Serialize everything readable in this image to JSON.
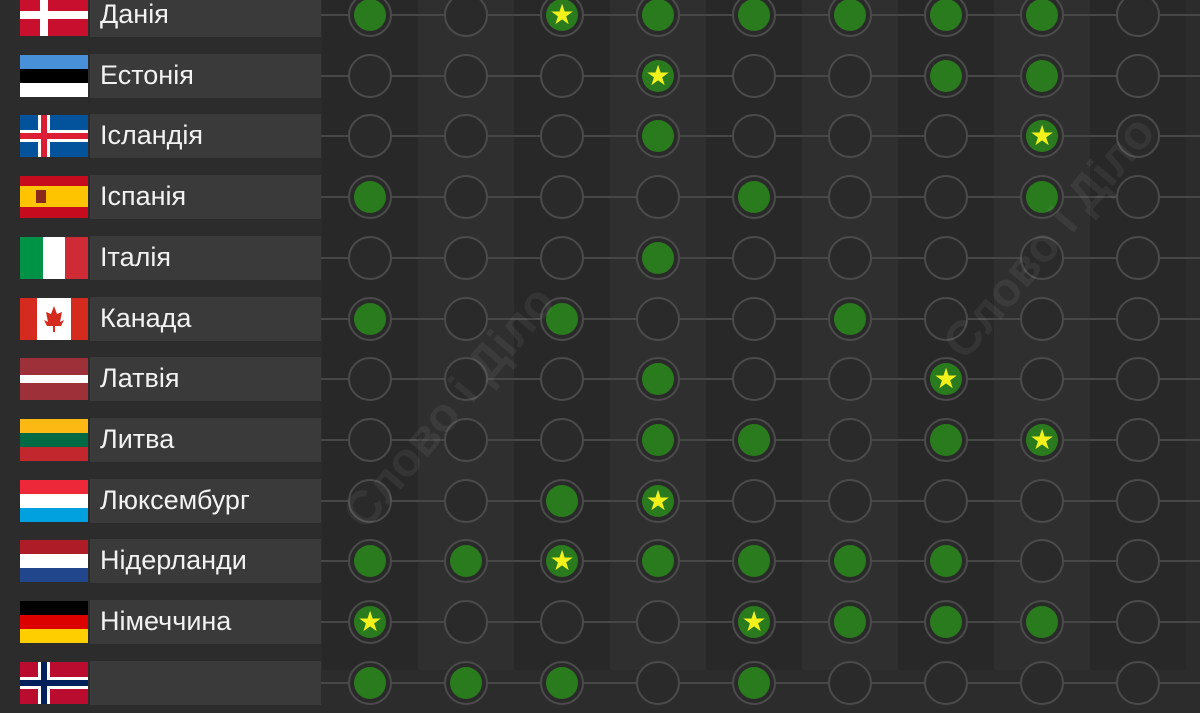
{
  "colors": {
    "filled": "#2a7a1e",
    "star": "#f3f11c",
    "empty_border": "#4b4b4b",
    "label_bg": "#3a3a3a"
  },
  "watermark": "Слово і Діло",
  "legend_states": {
    "0": "empty",
    "1": "filled",
    "2": "star"
  },
  "rows": [
    {
      "name": "Данія",
      "flag": "denmark",
      "cells": [
        1,
        0,
        2,
        1,
        1,
        1,
        1,
        1,
        0
      ]
    },
    {
      "name": "Естонія",
      "flag": "estonia",
      "cells": [
        0,
        0,
        0,
        2,
        0,
        0,
        1,
        1,
        0
      ]
    },
    {
      "name": "Ісландія",
      "flag": "iceland",
      "cells": [
        0,
        0,
        0,
        1,
        0,
        0,
        0,
        2,
        0
      ]
    },
    {
      "name": "Іспанія",
      "flag": "spain",
      "cells": [
        1,
        0,
        0,
        0,
        1,
        0,
        0,
        1,
        0
      ]
    },
    {
      "name": "Італія",
      "flag": "italy",
      "cells": [
        0,
        0,
        0,
        1,
        0,
        0,
        0,
        0,
        0
      ]
    },
    {
      "name": "Канада",
      "flag": "canada",
      "cells": [
        1,
        0,
        1,
        0,
        0,
        1,
        0,
        0,
        0
      ]
    },
    {
      "name": "Латвія",
      "flag": "latvia",
      "cells": [
        0,
        0,
        0,
        1,
        0,
        0,
        2,
        0,
        0
      ]
    },
    {
      "name": "Литва",
      "flag": "lithuania",
      "cells": [
        0,
        0,
        0,
        1,
        1,
        0,
        1,
        2,
        0
      ]
    },
    {
      "name": "Люксембург",
      "flag": "luxembourg",
      "cells": [
        0,
        0,
        1,
        2,
        0,
        0,
        0,
        0,
        0
      ]
    },
    {
      "name": "Нідерланди",
      "flag": "netherlands",
      "cells": [
        1,
        1,
        2,
        1,
        1,
        1,
        1,
        0,
        0
      ]
    },
    {
      "name": "Німеччина",
      "flag": "germany",
      "cells": [
        2,
        0,
        0,
        0,
        2,
        1,
        1,
        1,
        0
      ]
    },
    {
      "name": "",
      "flag": "norway",
      "cells": [
        1,
        1,
        1,
        0,
        1,
        0,
        0,
        0,
        0
      ]
    }
  ]
}
